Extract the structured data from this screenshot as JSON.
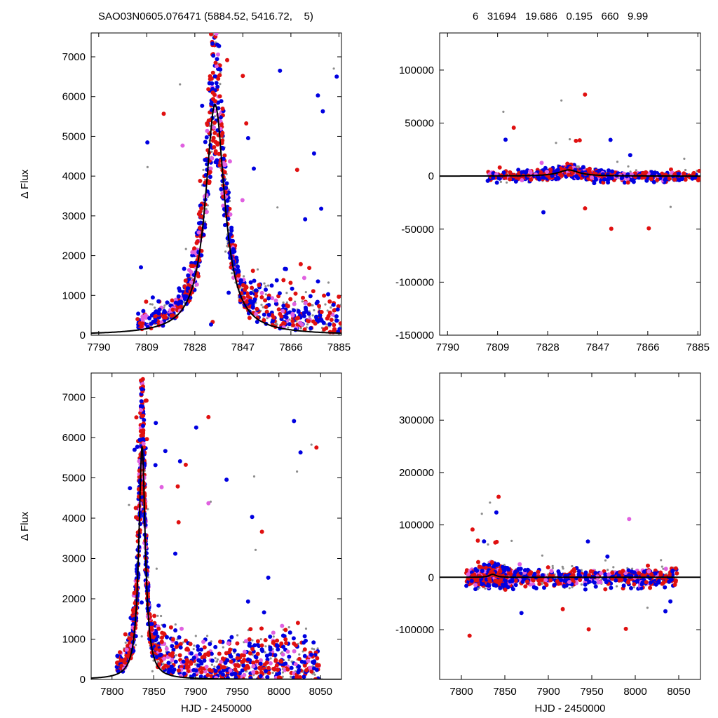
{
  "header": {
    "left": "SAO03N0605.076471 (5884.52, 5416.72,    5)",
    "right": "6   31694   19.686   0.195   660   9.99"
  },
  "colors": {
    "blue": "#0000e0",
    "red": "#e01010",
    "magenta": "#e060e0",
    "gray": "#8c8c8c",
    "model": "#000000"
  },
  "chart_data": [
    {
      "id": "top-left",
      "type": "scatter",
      "xlabel": "",
      "ylabel": "Δ Flux",
      "xlim": [
        7787,
        7886
      ],
      "ylim": [
        0,
        7600
      ],
      "xticks": [
        7790,
        7809,
        7828,
        7847,
        7866,
        7885
      ],
      "yticks": [
        0,
        1000,
        2000,
        3000,
        4000,
        5000,
        6000,
        7000
      ],
      "model": {
        "peak_x": 7836.0,
        "amplitude": 5800,
        "width": 4.6
      }
    },
    {
      "id": "top-right",
      "type": "scatter",
      "xlabel": "",
      "ylabel": "",
      "xlim": [
        7787,
        7886
      ],
      "ylim": [
        -150000,
        135000
      ],
      "xticks": [
        7790,
        7809,
        7828,
        7847,
        7866,
        7885
      ],
      "yticks": [
        -150000,
        -100000,
        -50000,
        0,
        50000,
        100000
      ],
      "model": {
        "peak_x": 7836.0,
        "amplitude": 5800,
        "width": 4.6
      }
    },
    {
      "id": "bottom-left",
      "type": "scatter",
      "xlabel": "HJD - 2450000",
      "ylabel": "Δ Flux",
      "xlim": [
        7775,
        8075
      ],
      "ylim": [
        0,
        7600
      ],
      "xticks": [
        7800,
        7850,
        7900,
        7950,
        8000,
        8050
      ],
      "yticks": [
        0,
        1000,
        2000,
        3000,
        4000,
        5000,
        6000,
        7000
      ],
      "model": {
        "peak_x": 7836.0,
        "amplitude": 5800,
        "width": 4.6
      }
    },
    {
      "id": "bottom-right",
      "type": "scatter",
      "xlabel": "HJD - 2450000",
      "ylabel": "",
      "xlim": [
        7775,
        8075
      ],
      "ylim": [
        -195000,
        390000
      ],
      "xticks": [
        7800,
        7850,
        7900,
        7950,
        8000,
        8050
      ],
      "yticks": [
        -100000,
        0,
        100000,
        200000,
        300000
      ],
      "model": {
        "peak_x": 7836.0,
        "amplitude": 5800,
        "width": 4.6
      }
    }
  ]
}
